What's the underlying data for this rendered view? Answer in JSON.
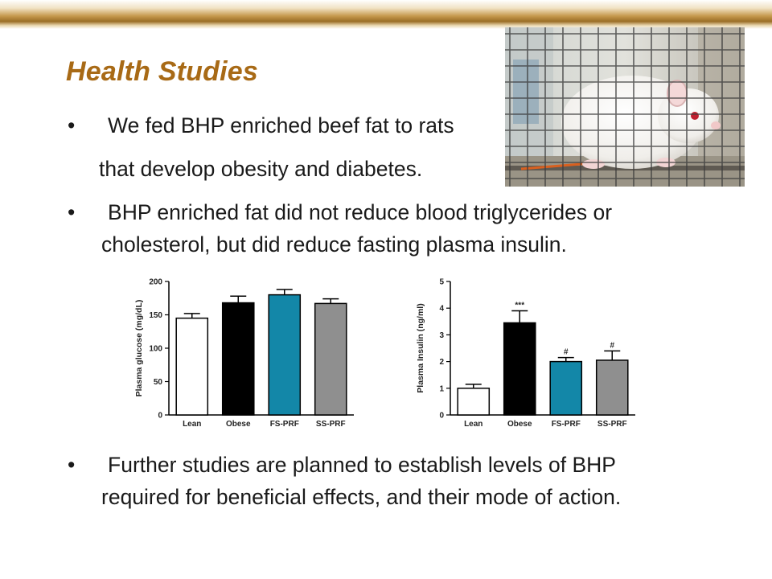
{
  "slide": {
    "title": "Health Studies",
    "bullet_symbol": "•",
    "bullets": [
      {
        "lines": [
          "We fed BHP enriched beef fat to rats",
          "that develop obesity and diabetes."
        ]
      },
      {
        "lines": [
          "BHP enriched fat did not reduce blood triglycerides or",
          "cholesterol, but did reduce fasting plasma insulin."
        ]
      },
      {
        "lines": [
          "Further studies are planned to establish levels of BHP",
          "required for beneficial effects, and their mode of action."
        ]
      }
    ]
  },
  "photo": {
    "subject": "white-rat-in-wire-cage"
  },
  "colors": {
    "title": "#a86a16",
    "bar_lean": "#ffffff",
    "bar_obese": "#000000",
    "bar_fs_prf": "#1387a8",
    "bar_ss_prf": "#8f8f8f"
  },
  "chart_data": [
    {
      "type": "bar",
      "categories": [
        "Lean",
        "Obese",
        "FS-PRF",
        "SS-PRF"
      ],
      "values": [
        145,
        168,
        180,
        167
      ],
      "errors": [
        7,
        10,
        8,
        7
      ],
      "annotations": [
        "",
        "",
        "",
        ""
      ],
      "ylabel": "Plasma glucose (mg/dL)",
      "ylim": [
        0,
        200
      ],
      "yticks": [
        "0",
        "50",
        "100",
        "150",
        "200"
      ],
      "tick_values": [
        0,
        50,
        100,
        150,
        200
      ],
      "grid": false
    },
    {
      "type": "bar",
      "categories": [
        "Lean",
        "Obese",
        "FS-PRF",
        "SS-PRF"
      ],
      "values": [
        1.0,
        3.45,
        2.0,
        2.05
      ],
      "errors": [
        0.15,
        0.45,
        0.15,
        0.35
      ],
      "annotations": [
        "",
        "***",
        "#",
        "#"
      ],
      "ylabel": "Plasma Insulin (ng/ml)",
      "ylim": [
        0,
        5
      ],
      "yticks": [
        "0",
        "1",
        "2",
        "3",
        "4",
        "5"
      ],
      "tick_values": [
        0,
        1,
        2,
        3,
        4,
        5
      ],
      "grid": false
    }
  ]
}
